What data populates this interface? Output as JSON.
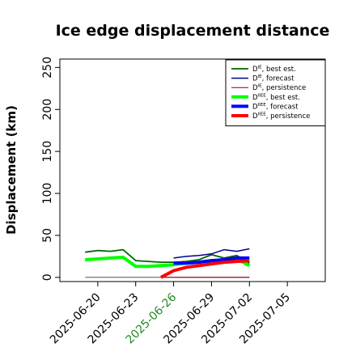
{
  "chart_data": {
    "type": "line",
    "title": "Ice edge displacement distance",
    "xlabel": "",
    "ylabel": "Displacement (km)",
    "ylim": [
      -5,
      260
    ],
    "xlim": [
      "2025-06-17",
      "2025-07-08"
    ],
    "yticks": [
      0,
      50,
      100,
      150,
      200,
      250
    ],
    "xticks": [
      {
        "label": "2025-06-20",
        "color": "#000000"
      },
      {
        "label": "2025-06-23",
        "color": "#000000"
      },
      {
        "label": "2025-06-26",
        "color": "#228B22"
      },
      {
        "label": "2025-06-29",
        "color": "#000000"
      },
      {
        "label": "2025-07-02",
        "color": "#000000"
      },
      {
        "label": "2025-07-05",
        "color": "#000000"
      }
    ],
    "legend_position": "top-right",
    "series": [
      {
        "name": "D^IE, best est.",
        "sup": "IE",
        "suffix": ", best est.",
        "color": "#006400",
        "width": 1.8,
        "x": [
          "2025-06-19",
          "2025-06-20",
          "2025-06-21",
          "2025-06-22",
          "2025-06-23",
          "2025-06-24",
          "2025-06-25",
          "2025-06-26",
          "2025-06-27",
          "2025-06-28",
          "2025-06-29",
          "2025-06-30",
          "2025-07-01",
          "2025-07-02"
        ],
        "y": [
          30,
          32,
          31,
          33,
          20,
          19,
          18,
          18,
          19,
          21,
          27,
          23,
          26,
          17
        ]
      },
      {
        "name": "D^IE, forecast",
        "sup": "IE",
        "suffix": ", forecast",
        "color": "#00008B",
        "width": 1.5,
        "x": [
          "2025-06-26",
          "2025-06-27",
          "2025-06-28",
          "2025-06-29",
          "2025-06-30",
          "2025-07-01",
          "2025-07-02"
        ],
        "y": [
          23,
          25,
          26,
          28,
          33,
          31,
          34
        ]
      },
      {
        "name": "D^IE, persistence",
        "sup": "IE",
        "suffix": ", persistence",
        "color": "#8B0000",
        "width": 1.0,
        "x": [
          "2025-06-25",
          "2025-07-02"
        ],
        "y": [
          0,
          0
        ]
      },
      {
        "name": "D^IIEE, best est.",
        "sup": "IIEE",
        "suffix": ", best est.",
        "color": "#00FF00",
        "width": 4,
        "x": [
          "2025-06-19",
          "2025-06-20",
          "2025-06-21",
          "2025-06-22",
          "2025-06-23",
          "2025-06-24",
          "2025-06-25",
          "2025-06-26",
          "2025-06-27",
          "2025-06-28",
          "2025-06-29",
          "2025-06-30",
          "2025-07-01",
          "2025-07-02"
        ],
        "y": [
          21,
          22,
          23,
          24,
          13,
          13,
          14,
          15,
          17,
          18,
          20,
          20,
          22,
          14
        ]
      },
      {
        "name": "D^IIEE, forecast",
        "sup": "IIEE",
        "suffix": ", forecast",
        "color": "#0000FF",
        "width": 4,
        "x": [
          "2025-06-26",
          "2025-06-27",
          "2025-06-28",
          "2025-06-29",
          "2025-06-30",
          "2025-07-01",
          "2025-07-02"
        ],
        "y": [
          17,
          17,
          18,
          20,
          21,
          23,
          23
        ]
      },
      {
        "name": "D^IIEE, persistence",
        "sup": "IIEE",
        "suffix": ", persistence",
        "color": "#FF0000",
        "width": 4,
        "x": [
          "2025-06-25",
          "2025-06-26",
          "2025-06-27",
          "2025-06-28",
          "2025-06-29",
          "2025-06-30",
          "2025-07-01",
          "2025-07-02"
        ],
        "y": [
          0,
          8,
          12,
          14,
          16,
          18,
          19,
          20
        ]
      }
    ],
    "baseline": {
      "color": "#555555",
      "x": [
        "2025-06-19",
        "2025-07-02"
      ],
      "y": [
        0,
        0
      ]
    }
  }
}
